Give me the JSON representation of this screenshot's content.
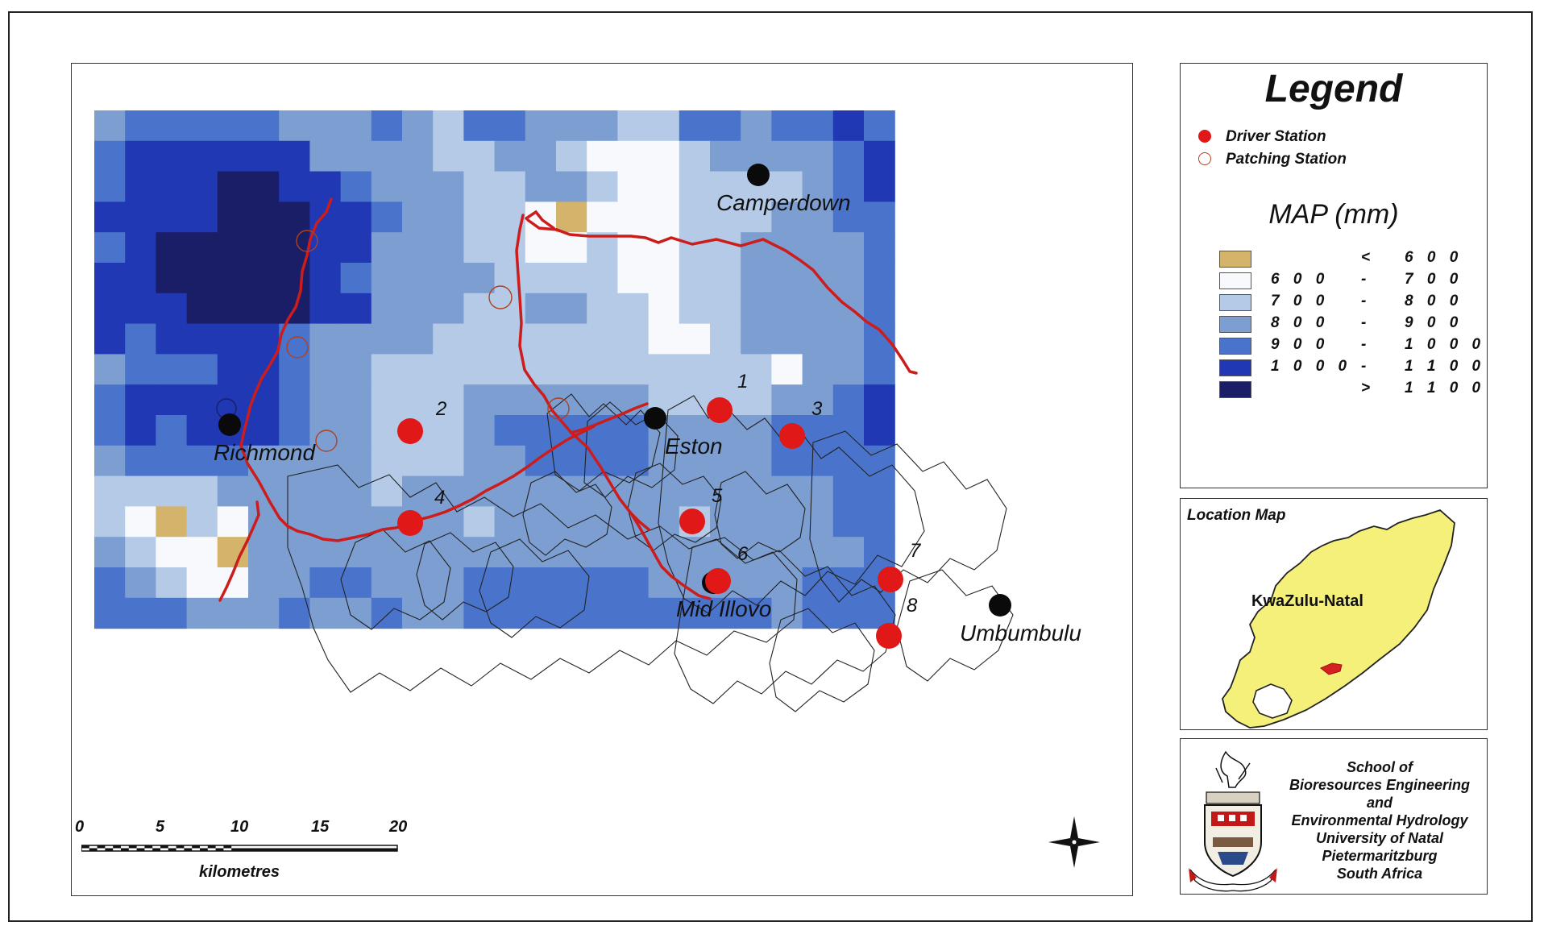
{
  "legend": {
    "title": "Legend",
    "symbols": [
      {
        "label": "Driver Station",
        "color": "#e01818",
        "style": "filled"
      },
      {
        "label": "Patching Station",
        "color": "#b04020",
        "style": "hollow"
      }
    ],
    "map_title": "MAP (mm)",
    "classes": [
      {
        "lo": "",
        "op": "<",
        "hi": "6 0 0",
        "color": "#d4b46a"
      },
      {
        "lo": "6 0 0",
        "op": "-",
        "hi": "7 0 0",
        "color": "#f7f9fc"
      },
      {
        "lo": "7 0 0",
        "op": "-",
        "hi": "8 0 0",
        "color": "#b4cae6"
      },
      {
        "lo": "8 0 0",
        "op": "-",
        "hi": "9 0 0",
        "color": "#7c9ed0"
      },
      {
        "lo": "9 0 0",
        "op": "-",
        "hi": "1 0 0 0",
        "color": "#4a74cc"
      },
      {
        "lo": "1 0 0 0",
        "op": "-",
        "hi": "1 1 0 0",
        "color": "#2038b4"
      },
      {
        "lo": "",
        "op": ">",
        "hi": "1 1 0 0",
        "color": "#1a1e66"
      }
    ]
  },
  "location_map": {
    "title": "Location Map",
    "region": "KwaZulu-Natal"
  },
  "credit": {
    "lines": [
      "School of",
      "Bioresources Engineering",
      "and",
      "Environmental Hydrology",
      "University of Natal",
      "Pietermaritzburg",
      "South Africa"
    ]
  },
  "scale_bar": {
    "ticks": [
      "0",
      "5",
      "10",
      "15",
      "20"
    ],
    "unit": "kilometres"
  },
  "towns": [
    {
      "name": "Camperdown"
    },
    {
      "name": "Richmond"
    },
    {
      "name": "Eston"
    },
    {
      "name": "Mid Illovo"
    },
    {
      "name": "Umbumbulu"
    }
  ],
  "stations": [
    {
      "id": "1",
      "type": "driver"
    },
    {
      "id": "2",
      "type": "driver"
    },
    {
      "id": "3",
      "type": "driver"
    },
    {
      "id": "4",
      "type": "driver"
    },
    {
      "id": "5",
      "type": "driver"
    },
    {
      "id": "6",
      "type": "driver"
    },
    {
      "id": "7",
      "type": "driver"
    },
    {
      "id": "8",
      "type": "driver"
    }
  ]
}
